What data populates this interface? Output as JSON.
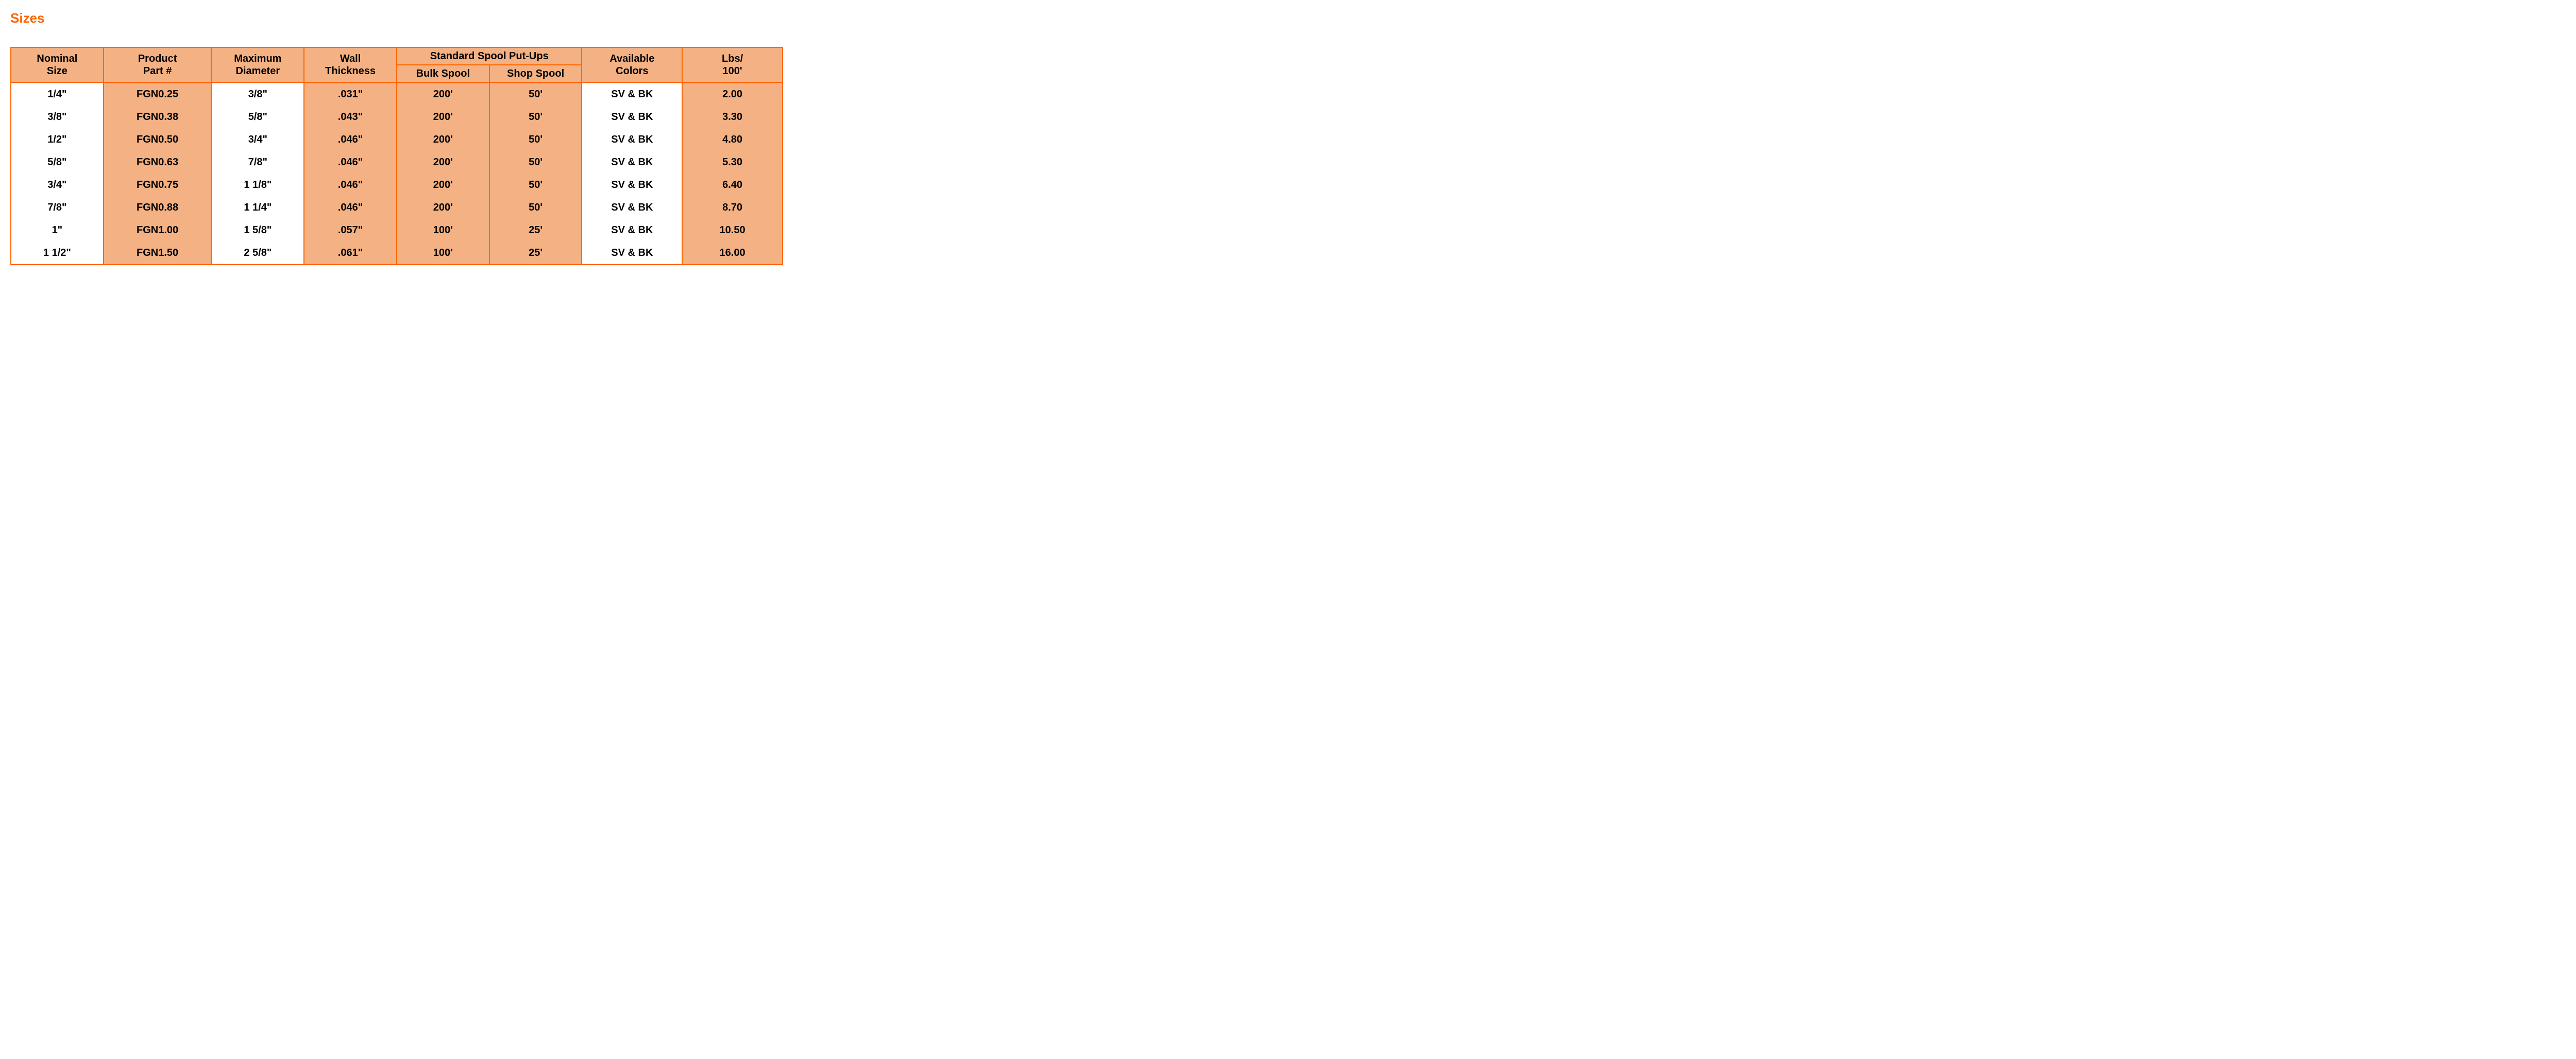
{
  "title": "Sizes",
  "table": {
    "type": "table",
    "colors": {
      "border": "#ff6600",
      "header_bg": "#f4b183",
      "shade_bg": "#f4b183",
      "plain_bg": "#ffffff",
      "text": "#000000",
      "title": "#ff6600"
    },
    "font": {
      "family": "Arial",
      "header_size_pt": 15,
      "cell_size_pt": 15,
      "weight": "bold"
    },
    "columns": [
      {
        "key": "nominal",
        "header_l1": "Nominal",
        "header_l2": "Size",
        "shaded": false,
        "width_pct": 12
      },
      {
        "key": "part",
        "header_l1": "Product",
        "header_l2": "Part #",
        "shaded": true,
        "width_pct": 14
      },
      {
        "key": "maxdia",
        "header_l1": "Maximum",
        "header_l2": "Diameter",
        "shaded": false,
        "width_pct": 12
      },
      {
        "key": "wall",
        "header_l1": "Wall",
        "header_l2": "Thickness",
        "shaded": true,
        "width_pct": 12
      },
      {
        "key": "bulk",
        "header_l1": "",
        "header_l2": "Bulk Spool",
        "shaded": true,
        "width_pct": 12,
        "group": "spool"
      },
      {
        "key": "shop",
        "header_l1": "",
        "header_l2": "Shop Spool",
        "shaded": true,
        "width_pct": 12,
        "group": "spool"
      },
      {
        "key": "colors",
        "header_l1": "Available",
        "header_l2": "Colors",
        "shaded": false,
        "width_pct": 13
      },
      {
        "key": "lbs",
        "header_l1": "Lbs/",
        "header_l2": "100'",
        "shaded": true,
        "width_pct": 13
      }
    ],
    "spool_group_label": "Standard Spool Put-Ups",
    "rows": [
      {
        "nominal": "1/4\"",
        "part": "FGN0.25",
        "maxdia": "3/8\"",
        "wall": ".031\"",
        "bulk": "200'",
        "shop": "50'",
        "colors": "SV & BK",
        "lbs": "2.00"
      },
      {
        "nominal": "3/8\"",
        "part": "FGN0.38",
        "maxdia": "5/8\"",
        "wall": ".043\"",
        "bulk": "200'",
        "shop": "50'",
        "colors": "SV & BK",
        "lbs": "3.30"
      },
      {
        "nominal": "1/2\"",
        "part": "FGN0.50",
        "maxdia": "3/4\"",
        "wall": ".046\"",
        "bulk": "200'",
        "shop": "50'",
        "colors": "SV & BK",
        "lbs": "4.80"
      },
      {
        "nominal": "5/8\"",
        "part": "FGN0.63",
        "maxdia": "7/8\"",
        "wall": ".046\"",
        "bulk": "200'",
        "shop": "50'",
        "colors": "SV & BK",
        "lbs": "5.30"
      },
      {
        "nominal": "3/4\"",
        "part": "FGN0.75",
        "maxdia": "1 1/8\"",
        "wall": ".046\"",
        "bulk": "200'",
        "shop": "50'",
        "colors": "SV & BK",
        "lbs": "6.40"
      },
      {
        "nominal": "7/8\"",
        "part": "FGN0.88",
        "maxdia": "1 1/4\"",
        "wall": ".046\"",
        "bulk": "200'",
        "shop": "50'",
        "colors": "SV & BK",
        "lbs": "8.70"
      },
      {
        "nominal": "1\"",
        "part": "FGN1.00",
        "maxdia": "1 5/8\"",
        "wall": ".057\"",
        "bulk": "100'",
        "shop": "25'",
        "colors": "SV & BK",
        "lbs": "10.50"
      },
      {
        "nominal": "1 1/2\"",
        "part": "FGN1.50",
        "maxdia": "2 5/8\"",
        "wall": ".061\"",
        "bulk": "100'",
        "shop": "25'",
        "colors": "SV & BK",
        "lbs": "16.00"
      }
    ]
  }
}
